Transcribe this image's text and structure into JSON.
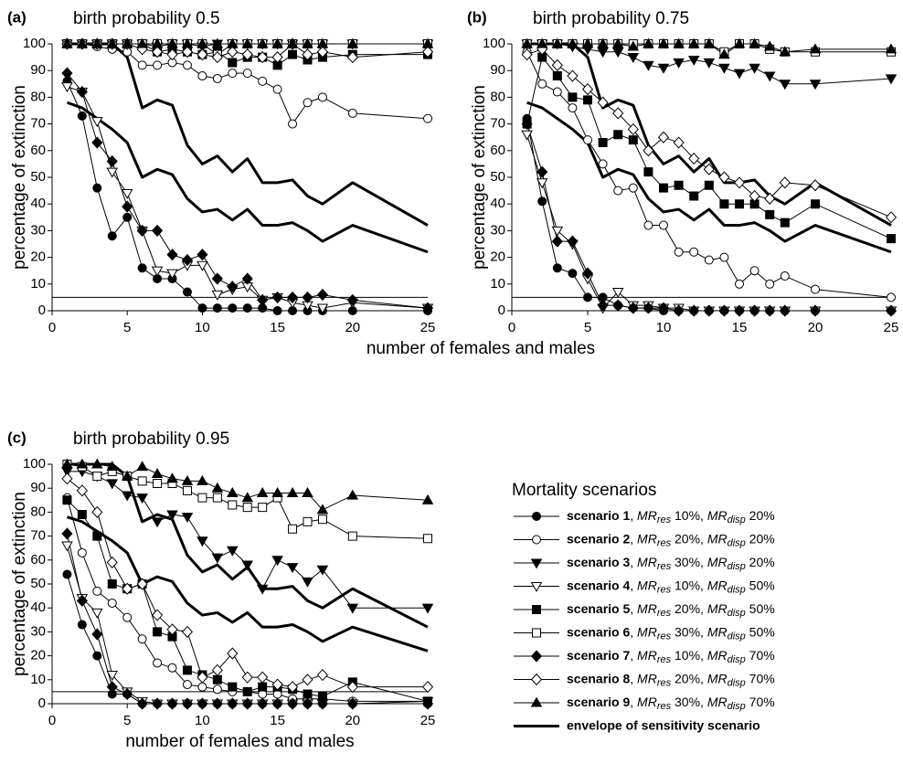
{
  "chart_data": [
    {
      "type": "line",
      "panel_label": "(a)",
      "title": "birth probability 0.5",
      "xlabel": "number of females and males",
      "ylabel": "percentage of extinction",
      "x": [
        1,
        2,
        3,
        4,
        5,
        6,
        7,
        8,
        9,
        10,
        11,
        12,
        13,
        14,
        15,
        16,
        17,
        18,
        20,
        25
      ],
      "xlim": [
        0,
        25
      ],
      "xticks": [
        0,
        5,
        10,
        15,
        20,
        25
      ],
      "ylim": [
        0,
        100
      ],
      "yticks": [
        0,
        10,
        20,
        30,
        40,
        50,
        60,
        70,
        80,
        90,
        100
      ],
      "hline": 5,
      "series": [
        {
          "name": "scenario 1",
          "marker": "circle",
          "fill": "filled",
          "color": "#000",
          "values": [
            86,
            73,
            46,
            28,
            35,
            16,
            12,
            12,
            7,
            1,
            1,
            1,
            1,
            1,
            0,
            0,
            0,
            0,
            0,
            0
          ]
        },
        {
          "name": "scenario 2",
          "marker": "circle",
          "fill": "open",
          "color": "#000",
          "values": [
            100,
            100,
            99,
            98,
            97,
            92,
            92,
            93,
            92,
            88,
            87,
            89,
            89,
            86,
            83,
            70,
            78,
            80,
            74,
            72
          ]
        },
        {
          "name": "scenario 3",
          "marker": "triangle-down",
          "fill": "filled",
          "color": "#000",
          "values": [
            100,
            100,
            100,
            100,
            100,
            100,
            99,
            100,
            100,
            99,
            100,
            100,
            100,
            100,
            100,
            100,
            100,
            100,
            100,
            100
          ]
        },
        {
          "name": "scenario 4",
          "marker": "triangle-down",
          "fill": "open",
          "color": "#000",
          "values": [
            84,
            82,
            71,
            52,
            44,
            30,
            15,
            14,
            17,
            17,
            6,
            8,
            9,
            4,
            5,
            3,
            2,
            1,
            3,
            1
          ]
        },
        {
          "name": "scenario 5",
          "marker": "square",
          "fill": "filled",
          "color": "#000",
          "values": [
            100,
            100,
            100,
            100,
            100,
            100,
            97,
            98,
            97,
            96,
            97,
            93,
            95,
            95,
            92,
            96,
            94,
            95,
            96,
            96
          ]
        },
        {
          "name": "scenario 6",
          "marker": "square",
          "fill": "open",
          "color": "#000",
          "values": [
            100,
            100,
            100,
            100,
            100,
            100,
            100,
            100,
            100,
            100,
            96,
            100,
            100,
            100,
            100,
            100,
            100,
            100,
            100,
            100
          ]
        },
        {
          "name": "scenario 7",
          "marker": "diamond",
          "fill": "filled",
          "color": "#000",
          "values": [
            89,
            82,
            63,
            56,
            39,
            30,
            30,
            21,
            19,
            21,
            12,
            9,
            12,
            4,
            5,
            5,
            5,
            6,
            4,
            1
          ]
        },
        {
          "name": "scenario 8",
          "marker": "diamond",
          "fill": "open",
          "color": "#000",
          "values": [
            100,
            100,
            100,
            100,
            100,
            98,
            97,
            96,
            97,
            96,
            95,
            97,
            96,
            95,
            95,
            100,
            96,
            97,
            95,
            97
          ]
        },
        {
          "name": "scenario 9",
          "marker": "triangle-up",
          "fill": "filled",
          "color": "#000",
          "values": [
            100,
            100,
            100,
            100,
            100,
            100,
            100,
            100,
            100,
            100,
            100,
            100,
            100,
            100,
            100,
            100,
            100,
            100,
            100,
            100
          ]
        },
        {
          "name": "envelope of sensitivity scenario",
          "marker": "none",
          "color": "#000",
          "values": [
            100,
            100,
            100,
            100,
            95,
            76,
            79,
            77,
            62,
            55,
            58,
            52,
            57,
            48,
            48,
            49,
            43,
            40,
            48,
            32
          ],
          "lower": [
            78,
            76,
            72,
            68,
            63,
            50,
            53,
            51,
            42,
            37,
            38,
            34,
            38,
            32,
            32,
            33,
            30,
            26,
            32,
            22
          ]
        }
      ]
    },
    {
      "type": "line",
      "panel_label": "(b)",
      "title": "birth probability 0.75",
      "ylabel": "percentage of extinction",
      "x": [
        1,
        2,
        3,
        4,
        5,
        6,
        7,
        8,
        9,
        10,
        11,
        12,
        13,
        14,
        15,
        16,
        17,
        18,
        20,
        25
      ],
      "xlim": [
        0,
        25
      ],
      "xticks": [
        0,
        5,
        10,
        15,
        20,
        25
      ],
      "ylim": [
        0,
        100
      ],
      "yticks": [
        0,
        10,
        20,
        30,
        40,
        50,
        60,
        70,
        80,
        90,
        100
      ],
      "hline": 5,
      "series": [
        {
          "name": "scenario 1",
          "marker": "circle",
          "fill": "filled",
          "color": "#000",
          "values": [
            72,
            41,
            16,
            14,
            5,
            5,
            2,
            1,
            1,
            0,
            0,
            0,
            0,
            0,
            0,
            0,
            0,
            0,
            0,
            0
          ]
        },
        {
          "name": "scenario 2",
          "marker": "circle",
          "fill": "open",
          "color": "#000",
          "values": [
            97,
            85,
            82,
            76,
            64,
            55,
            45,
            46,
            32,
            32,
            22,
            22,
            19,
            20,
            10,
            15,
            10,
            13,
            8,
            5
          ]
        },
        {
          "name": "scenario 3",
          "marker": "triangle-down",
          "fill": "filled",
          "color": "#000",
          "values": [
            100,
            100,
            100,
            99,
            98,
            97,
            97,
            95,
            92,
            91,
            93,
            94,
            93,
            91,
            89,
            91,
            88,
            85,
            85,
            87
          ]
        },
        {
          "name": "scenario 4",
          "marker": "triangle-down",
          "fill": "open",
          "color": "#000",
          "values": [
            66,
            48,
            30,
            25,
            12,
            1,
            7,
            2,
            2,
            1,
            1,
            0,
            0,
            0,
            0,
            0,
            0,
            0,
            0,
            0
          ]
        },
        {
          "name": "scenario 5",
          "marker": "square",
          "fill": "filled",
          "color": "#000",
          "values": [
            70,
            95,
            88,
            80,
            79,
            63,
            66,
            64,
            52,
            46,
            47,
            43,
            47,
            40,
            40,
            40,
            36,
            33,
            40,
            27
          ]
        },
        {
          "name": "scenario 6",
          "marker": "square",
          "fill": "open",
          "color": "#000",
          "values": [
            100,
            100,
            100,
            100,
            100,
            100,
            100,
            100,
            100,
            100,
            100,
            100,
            100,
            97,
            100,
            100,
            98,
            97,
            97,
            97
          ]
        },
        {
          "name": "scenario 7",
          "marker": "diamond",
          "fill": "filled",
          "color": "#000",
          "values": [
            70,
            52,
            26,
            26,
            14,
            2,
            2,
            1,
            1,
            1,
            0,
            0,
            0,
            0,
            0,
            0,
            0,
            0,
            0,
            0
          ]
        },
        {
          "name": "scenario 8",
          "marker": "diamond",
          "fill": "open",
          "color": "#000",
          "values": [
            96,
            98,
            92,
            88,
            83,
            78,
            74,
            68,
            60,
            65,
            63,
            57,
            53,
            50,
            48,
            43,
            42,
            48,
            47,
            35
          ]
        },
        {
          "name": "scenario 9",
          "marker": "triangle-up",
          "fill": "filled",
          "color": "#000",
          "values": [
            100,
            100,
            100,
            100,
            100,
            100,
            100,
            99,
            100,
            100,
            100,
            100,
            100,
            96,
            100,
            100,
            99,
            97,
            98,
            98
          ]
        },
        {
          "name": "envelope of sensitivity scenario",
          "marker": "none",
          "color": "#000",
          "values": [
            100,
            100,
            100,
            100,
            95,
            76,
            79,
            77,
            62,
            55,
            58,
            52,
            57,
            48,
            48,
            49,
            43,
            40,
            48,
            32
          ],
          "lower": [
            78,
            76,
            72,
            68,
            63,
            50,
            53,
            51,
            42,
            37,
            38,
            34,
            38,
            32,
            32,
            33,
            30,
            26,
            32,
            22
          ]
        }
      ]
    },
    {
      "type": "line",
      "panel_label": "(c)",
      "title": "birth probability 0.95",
      "xlabel": "number of females and males",
      "ylabel": "percentage of extinction",
      "x": [
        1,
        2,
        3,
        4,
        5,
        6,
        7,
        8,
        9,
        10,
        11,
        12,
        13,
        14,
        15,
        16,
        17,
        18,
        20,
        25
      ],
      "xlim": [
        0,
        25
      ],
      "xticks": [
        0,
        5,
        10,
        15,
        20,
        25
      ],
      "ylim": [
        0,
        100
      ],
      "yticks": [
        0,
        10,
        20,
        30,
        40,
        50,
        60,
        70,
        80,
        90,
        100
      ],
      "hline": 5,
      "legend": {
        "title": "Mortality scenarios",
        "sep": ", ",
        "mr": "MR",
        "res": "res",
        "disp": "disp"
      },
      "series": [
        {
          "name": "scenario 1",
          "mr_res": " 10%",
          "mr_disp": " 20%",
          "marker": "circle",
          "fill": "filled",
          "color": "#000",
          "values": [
            54,
            33,
            20,
            4,
            4,
            0,
            0,
            0,
            0,
            0,
            0,
            0,
            0,
            0,
            0,
            0,
            0,
            0,
            0,
            0
          ]
        },
        {
          "name": "scenario 2",
          "mr_res": " 20%",
          "mr_disp": " 20%",
          "marker": "circle",
          "fill": "open",
          "color": "#000",
          "values": [
            86,
            63,
            47,
            42,
            36,
            27,
            17,
            15,
            8,
            7,
            6,
            5,
            5,
            4,
            4,
            2,
            2,
            2,
            1,
            1
          ]
        },
        {
          "name": "scenario 3",
          "mr_res": " 30%",
          "mr_disp": " 20%",
          "marker": "triangle-down",
          "fill": "filled",
          "color": "#000",
          "values": [
            97,
            97,
            95,
            92,
            87,
            86,
            76,
            79,
            78,
            68,
            61,
            64,
            58,
            48,
            60,
            57,
            51,
            56,
            40,
            40
          ]
        },
        {
          "name": "scenario 4",
          "mr_res": " 10%",
          "mr_disp": " 50%",
          "marker": "triangle-down",
          "fill": "open",
          "color": "#000",
          "values": [
            66,
            44,
            38,
            12,
            5,
            1,
            0,
            0,
            0,
            0,
            0,
            0,
            0,
            0,
            0,
            0,
            0,
            0,
            0,
            1
          ]
        },
        {
          "name": "scenario 5",
          "mr_res": " 20%",
          "mr_disp": " 50%",
          "marker": "square",
          "fill": "filled",
          "color": "#000",
          "values": [
            85,
            79,
            70,
            50,
            48,
            50,
            30,
            28,
            14,
            12,
            10,
            7,
            5,
            7,
            7,
            6,
            4,
            3,
            9,
            1
          ]
        },
        {
          "name": "scenario 6",
          "mr_res": " 30%",
          "mr_disp": " 50%",
          "marker": "square",
          "fill": "open",
          "color": "#000",
          "values": [
            100,
            99,
            95,
            97,
            95,
            93,
            92,
            92,
            89,
            86,
            86,
            83,
            82,
            82,
            86,
            73,
            76,
            77,
            70,
            69
          ]
        },
        {
          "name": "scenario 7",
          "mr_res": " 10%",
          "mr_disp": " 70%",
          "marker": "diamond",
          "fill": "filled",
          "color": "#000",
          "values": [
            71,
            43,
            29,
            7,
            4,
            0,
            0,
            0,
            0,
            0,
            0,
            0,
            0,
            0,
            0,
            0,
            0,
            0,
            0,
            0
          ]
        },
        {
          "name": "scenario 8",
          "mr_res": " 20%",
          "mr_disp": " 70%",
          "marker": "diamond",
          "fill": "open",
          "color": "#000",
          "values": [
            94,
            89,
            80,
            59,
            48,
            50,
            37,
            31,
            30,
            11,
            14,
            21,
            11,
            11,
            8,
            7,
            10,
            12,
            7,
            7
          ]
        },
        {
          "name": "scenario 9",
          "mr_res": " 30%",
          "mr_disp": " 70%",
          "marker": "triangle-up",
          "fill": "filled",
          "color": "#000",
          "values": [
            100,
            100,
            100,
            99,
            95,
            99,
            96,
            94,
            93,
            93,
            90,
            88,
            86,
            88,
            88,
            88,
            88,
            81,
            87,
            85
          ]
        },
        {
          "name": "envelope of sensitivity scenario",
          "marker": "none",
          "color": "#000",
          "values": [
            100,
            100,
            100,
            100,
            95,
            76,
            79,
            77,
            62,
            55,
            58,
            52,
            57,
            48,
            48,
            49,
            43,
            40,
            48,
            32
          ],
          "lower": [
            78,
            76,
            72,
            68,
            63,
            50,
            53,
            51,
            42,
            37,
            38,
            34,
            38,
            32,
            32,
            33,
            30,
            26,
            32,
            22
          ]
        }
      ]
    }
  ]
}
